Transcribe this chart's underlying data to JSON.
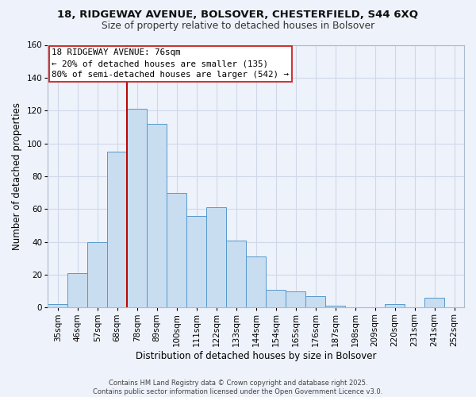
{
  "title1": "18, RIDGEWAY AVENUE, BOLSOVER, CHESTERFIELD, S44 6XQ",
  "title2": "Size of property relative to detached houses in Bolsover",
  "xlabel": "Distribution of detached houses by size in Bolsover",
  "ylabel": "Number of detached properties",
  "categories": [
    "35sqm",
    "46sqm",
    "57sqm",
    "68sqm",
    "78sqm",
    "89sqm",
    "100sqm",
    "111sqm",
    "122sqm",
    "133sqm",
    "144sqm",
    "154sqm",
    "165sqm",
    "176sqm",
    "187sqm",
    "198sqm",
    "209sqm",
    "220sqm",
    "231sqm",
    "241sqm",
    "252sqm"
  ],
  "values": [
    2,
    21,
    40,
    95,
    121,
    112,
    70,
    56,
    61,
    41,
    31,
    11,
    10,
    7,
    1,
    0,
    0,
    2,
    0,
    6,
    0
  ],
  "bar_color": "#c8ddf0",
  "bar_edge_color": "#5599cc",
  "vline_x_index": 4,
  "vline_color": "#bb0000",
  "annotation_text": "18 RIDGEWAY AVENUE: 76sqm\n← 20% of detached houses are smaller (135)\n80% of semi-detached houses are larger (542) →",
  "annotation_box_color": "#ffffff",
  "annotation_box_edge": "#cc2222",
  "ylim": [
    0,
    160
  ],
  "yticks": [
    0,
    20,
    40,
    60,
    80,
    100,
    120,
    140,
    160
  ],
  "footer1": "Contains HM Land Registry data © Crown copyright and database right 2025.",
  "footer2": "Contains public sector information licensed under the Open Government Licence v3.0.",
  "bg_color": "#eef2fa",
  "plot_bg_color": "#eef2fa",
  "grid_color": "#d0d8e8",
  "title_fontsize": 9.5,
  "subtitle_fontsize": 8.8,
  "tick_fontsize": 7.5,
  "axis_label_fontsize": 8.5,
  "footer_fontsize": 6.0,
  "annotation_fontsize": 7.8
}
